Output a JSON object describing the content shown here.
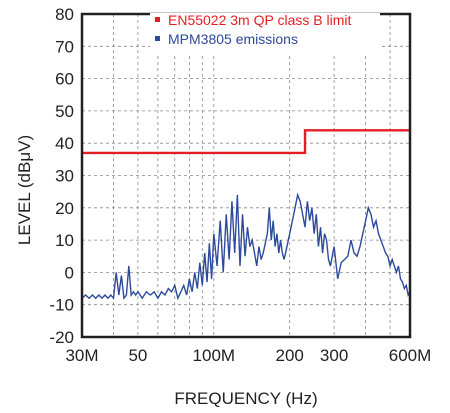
{
  "chart_data": {
    "type": "line",
    "xlabel": "FREQUENCY (Hz)",
    "ylabel": "LEVEL (dBμV)",
    "x_scale": "log",
    "xlim": [
      30,
      600
    ],
    "ylim": [
      -20,
      80
    ],
    "x_ticks": [
      {
        "value": 30,
        "label": "30M"
      },
      {
        "value": 50,
        "label": "50"
      },
      {
        "value": 100,
        "label": "100M"
      },
      {
        "value": 200,
        "label": "200"
      },
      {
        "value": 300,
        "label": "300"
      },
      {
        "value": 600,
        "label": "600M"
      }
    ],
    "y_ticks": [
      80,
      70,
      60,
      50,
      40,
      30,
      20,
      10,
      0,
      -10,
      -20
    ],
    "grid": true,
    "legend_position": "top-right",
    "series": [
      {
        "name": "EN55022 3m QP class B limit",
        "color": "#e31e24",
        "x": [
          30,
          230,
          230,
          600
        ],
        "y": [
          37,
          37,
          44,
          44
        ]
      },
      {
        "name": "MPM3805 emissions",
        "color": "#2e4a9c",
        "x": [
          30,
          31,
          32,
          33,
          34,
          35,
          36,
          37,
          38,
          39,
          40,
          41,
          42,
          43,
          44,
          45,
          46,
          47,
          48,
          49,
          50,
          52,
          54,
          56,
          58,
          60,
          62,
          64,
          66,
          68,
          70,
          72,
          74,
          76,
          78,
          80,
          82,
          84,
          86,
          88,
          90,
          92,
          94,
          96,
          98,
          100,
          103,
          106,
          109,
          112,
          115,
          118,
          121,
          124,
          127,
          130,
          133,
          136,
          139,
          142,
          145,
          148,
          151,
          154,
          157,
          160,
          163,
          166,
          169,
          172,
          175,
          178,
          181,
          184,
          187,
          190,
          195,
          200,
          205,
          210,
          215,
          220,
          225,
          230,
          235,
          240,
          245,
          250,
          255,
          260,
          265,
          270,
          275,
          280,
          285,
          290,
          300,
          310,
          320,
          330,
          340,
          350,
          360,
          370,
          380,
          390,
          400,
          410,
          420,
          430,
          440,
          450,
          460,
          470,
          480,
          490,
          500,
          510,
          520,
          530,
          540,
          550,
          560,
          570,
          580,
          590,
          600
        ],
        "y": [
          -8,
          -7,
          -8,
          -7,
          -8,
          -7,
          -8,
          -7,
          -8,
          -7,
          -8,
          0,
          -7,
          -1,
          -8,
          -7,
          2,
          -7,
          -6,
          -7,
          -6,
          -8,
          -6,
          -7,
          -6,
          -8,
          -6,
          -7,
          -5,
          -6,
          -4,
          -8,
          -6,
          -4,
          -7,
          -2,
          -6,
          0,
          -5,
          3,
          -4,
          6,
          -3,
          9,
          -2,
          12,
          2,
          16,
          0,
          18,
          4,
          22,
          6,
          24,
          2,
          18,
          5,
          14,
          8,
          10,
          6,
          2,
          8,
          4,
          6,
          9,
          12,
          20,
          10,
          16,
          8,
          12,
          6,
          10,
          6,
          4,
          8,
          12,
          16,
          20,
          24,
          22,
          18,
          14,
          22,
          16,
          20,
          12,
          18,
          8,
          14,
          6,
          12,
          10,
          4,
          2,
          8,
          -2,
          3,
          4,
          5,
          10,
          6,
          5,
          8,
          12,
          16,
          20,
          18,
          14,
          16,
          12,
          10,
          8,
          6,
          5,
          2,
          4,
          2,
          0,
          2,
          -2,
          -3,
          -5,
          -4,
          -7,
          -6
        ]
      }
    ]
  }
}
